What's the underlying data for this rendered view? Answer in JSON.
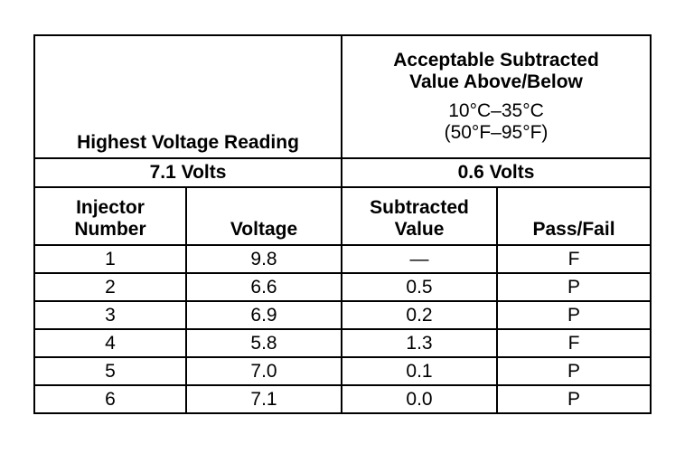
{
  "table": {
    "header": {
      "left": "Highest Voltage Reading",
      "right_line1": "Acceptable Subtracted",
      "right_line2": "Value Above/Below",
      "right_line3": "10°C–35°C",
      "right_line4": "(50°F–95°F)"
    },
    "summary": {
      "highest_voltage": "7.1 Volts",
      "acceptable_value": "0.6 Volts"
    },
    "columns": {
      "injector_line1": "Injector",
      "injector_line2": "Number",
      "voltage": "Voltage",
      "subtracted_line1": "Subtracted",
      "subtracted_line2": "Value",
      "pass_fail": "Pass/Fail"
    },
    "rows": [
      {
        "injector": "1",
        "voltage": "9.8",
        "subtracted": "—",
        "result": "F"
      },
      {
        "injector": "2",
        "voltage": "6.6",
        "subtracted": "0.5",
        "result": "P"
      },
      {
        "injector": "3",
        "voltage": "6.9",
        "subtracted": "0.2",
        "result": "P"
      },
      {
        "injector": "4",
        "voltage": "5.8",
        "subtracted": "1.3",
        "result": "F"
      },
      {
        "injector": "5",
        "voltage": "7.0",
        "subtracted": "0.1",
        "result": "P"
      },
      {
        "injector": "6",
        "voltage": "7.1",
        "subtracted": "0.0",
        "result": "P"
      }
    ]
  }
}
